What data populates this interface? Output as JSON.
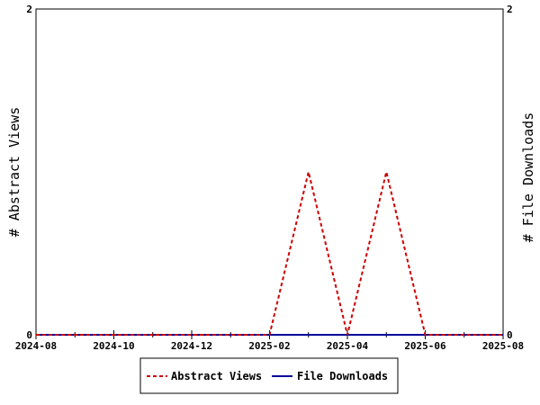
{
  "chart_data": {
    "type": "line",
    "title": "",
    "x_ticks": [
      "2024-08",
      "2024-10",
      "2024-12",
      "2025-02",
      "2025-04",
      "2025-06",
      "2025-08"
    ],
    "xlim": [
      "2024-08",
      "2025-08"
    ],
    "y_left": {
      "label": "# Abstract Views",
      "ylim": [
        0,
        2
      ],
      "ticks": [
        "0",
        "2"
      ]
    },
    "y_right": {
      "label": "# File Downloads",
      "ylim": [
        0,
        2
      ],
      "ticks": [
        "0",
        "2"
      ]
    },
    "series": [
      {
        "name": "Abstract Views",
        "axis": "left",
        "color": "#cc0000",
        "style": "dashed",
        "points": [
          {
            "x": "2024-08",
            "y": 0
          },
          {
            "x": "2024-09",
            "y": 0
          },
          {
            "x": "2024-10",
            "y": 0
          },
          {
            "x": "2024-11",
            "y": 0
          },
          {
            "x": "2024-12",
            "y": 0
          },
          {
            "x": "2025-01",
            "y": 0
          },
          {
            "x": "2025-02",
            "y": 0
          },
          {
            "x": "2025-03",
            "y": 1
          },
          {
            "x": "2025-04",
            "y": 0
          },
          {
            "x": "2025-05",
            "y": 1
          },
          {
            "x": "2025-06",
            "y": 0
          },
          {
            "x": "2025-07",
            "y": 0
          },
          {
            "x": "2025-08",
            "y": 0
          }
        ]
      },
      {
        "name": "File Downloads",
        "axis": "right",
        "color": "#000099",
        "style": "solid",
        "points": [
          {
            "x": "2024-08",
            "y": 0
          },
          {
            "x": "2024-09",
            "y": 0
          },
          {
            "x": "2024-10",
            "y": 0
          },
          {
            "x": "2024-11",
            "y": 0
          },
          {
            "x": "2024-12",
            "y": 0
          },
          {
            "x": "2025-01",
            "y": 0
          },
          {
            "x": "2025-02",
            "y": 0
          },
          {
            "x": "2025-03",
            "y": 0
          },
          {
            "x": "2025-04",
            "y": 0
          },
          {
            "x": "2025-05",
            "y": 0
          },
          {
            "x": "2025-06",
            "y": 0
          },
          {
            "x": "2025-07",
            "y": 0
          },
          {
            "x": "2025-08",
            "y": 0
          }
        ]
      }
    ],
    "grid": false,
    "legend": "bottom"
  }
}
